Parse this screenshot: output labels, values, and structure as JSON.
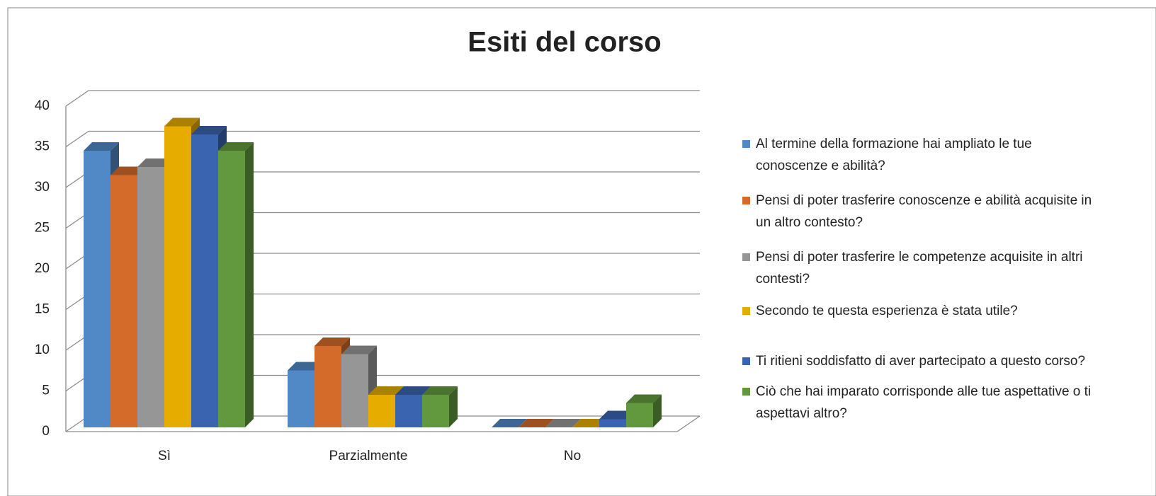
{
  "chart_data": {
    "type": "bar3d",
    "title": "Esiti del corso",
    "categories": [
      "Sì",
      "Parzialmente",
      "No"
    ],
    "series": [
      {
        "name": "Al termine della formazione hai ampliato le tue conoscenze e abilità?",
        "color": "#5089c6",
        "values": [
          34,
          7,
          0
        ]
      },
      {
        "name": "Pensi di poter trasferire conoscenze e abilità acquisite in un altro contesto?",
        "color": "#d46b2a",
        "values": [
          31,
          10,
          0
        ]
      },
      {
        "name": "Pensi di poter trasferire le competenze acquisite in  altri  contesti?",
        "color": "#969696",
        "values": [
          32,
          9,
          0
        ]
      },
      {
        "name": "Secondo te questa esperienza è stata utile?",
        "color": "#e6ac00",
        "values": [
          37,
          4,
          0
        ]
      },
      {
        "name": "Ti ritieni soddisfatto di aver partecipato a questo corso?",
        "color": "#3a64b0",
        "values": [
          36,
          4,
          1
        ]
      },
      {
        "name": "Ciò che hai imparato corrisponde alle tue aspettative o ti aspettavi altro?",
        "color": "#62993e",
        "values": [
          34,
          4,
          3
        ]
      }
    ],
    "ylim": [
      0,
      40
    ],
    "yticks": [
      0,
      5,
      10,
      15,
      20,
      25,
      30,
      35,
      40
    ],
    "grid": true,
    "legend": "right"
  }
}
